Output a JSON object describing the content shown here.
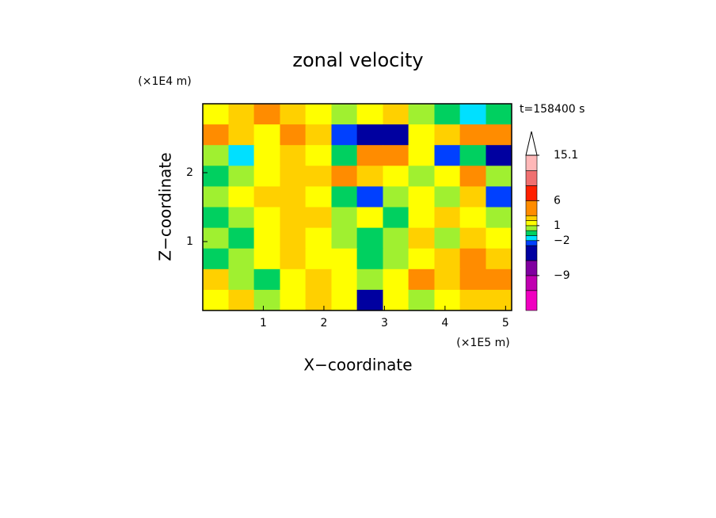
{
  "chart_data": {
    "type": "contour",
    "title": "zonal velocity",
    "x_label": "X−coordinate",
    "y_label": "Z−coordinate",
    "x_unit": "(×1E5 m)",
    "y_unit": "(×1E4 m)",
    "annotation": "t=158400 s",
    "xlim": [
      0,
      5.1
    ],
    "ylim": [
      0,
      3
    ],
    "xticks": [
      1,
      2,
      3,
      4,
      5
    ],
    "yticks": [
      1,
      2
    ],
    "field": {
      "x": [
        0.21,
        0.64,
        1.06,
        1.49,
        1.91,
        2.34,
        2.76,
        3.19,
        3.61,
        4.04,
        4.46,
        4.89
      ],
      "z": [
        2.85,
        2.55,
        2.25,
        1.95,
        1.65,
        1.35,
        1.05,
        0.75,
        0.45,
        0.15
      ],
      "values": [
        [
          1,
          2,
          3,
          2,
          1,
          0,
          1,
          2,
          0,
          -1,
          -2,
          -1
        ],
        [
          4,
          2,
          1,
          3,
          2,
          -3,
          -5,
          -5,
          1,
          2,
          4,
          5
        ],
        [
          0,
          -2,
          1,
          2,
          1,
          -1,
          3,
          4,
          1,
          -3,
          -1,
          -4
        ],
        [
          -1,
          0,
          1,
          2,
          2,
          4,
          2,
          1,
          0,
          1,
          4,
          0
        ],
        [
          0,
          1,
          2,
          2,
          1,
          -1,
          -3,
          0,
          1,
          0,
          2,
          -3
        ],
        [
          -1,
          0,
          1,
          2,
          2,
          0,
          1,
          -1,
          1,
          2,
          1,
          0
        ],
        [
          0,
          -1,
          1,
          2,
          1,
          0,
          -1,
          0,
          2,
          0,
          2,
          1
        ],
        [
          -1,
          0,
          1,
          2,
          1,
          1,
          -1,
          0,
          1,
          2,
          3,
          2
        ],
        [
          2,
          0,
          -1,
          1,
          2,
          1,
          0,
          1,
          3,
          2,
          3,
          4
        ],
        [
          1,
          2,
          0,
          1,
          2,
          1,
          -4,
          1,
          0,
          1,
          2,
          2
        ]
      ]
    },
    "clim": [
      -16,
      15.1
    ],
    "levels": [
      -12,
      -9,
      -6,
      -3,
      -2,
      -1,
      0,
      1,
      2,
      3,
      6,
      9,
      12,
      15.1
    ],
    "colors": [
      "#f000c0",
      "#c000b0",
      "#8000a0",
      "#0000a0",
      "#0040ff",
      "#00e0ff",
      "#00d060",
      "#a0f030",
      "#ffff00",
      "#ffd000",
      "#ff8c00",
      "#ff2000",
      "#f07070",
      "#ffb8b8"
    ],
    "over_color": "#ffffff",
    "cticks": [
      15.1,
      6,
      1,
      {
        "value": -2,
        "label": "−2"
      },
      {
        "value": -9,
        "label": "−9"
      }
    ]
  }
}
